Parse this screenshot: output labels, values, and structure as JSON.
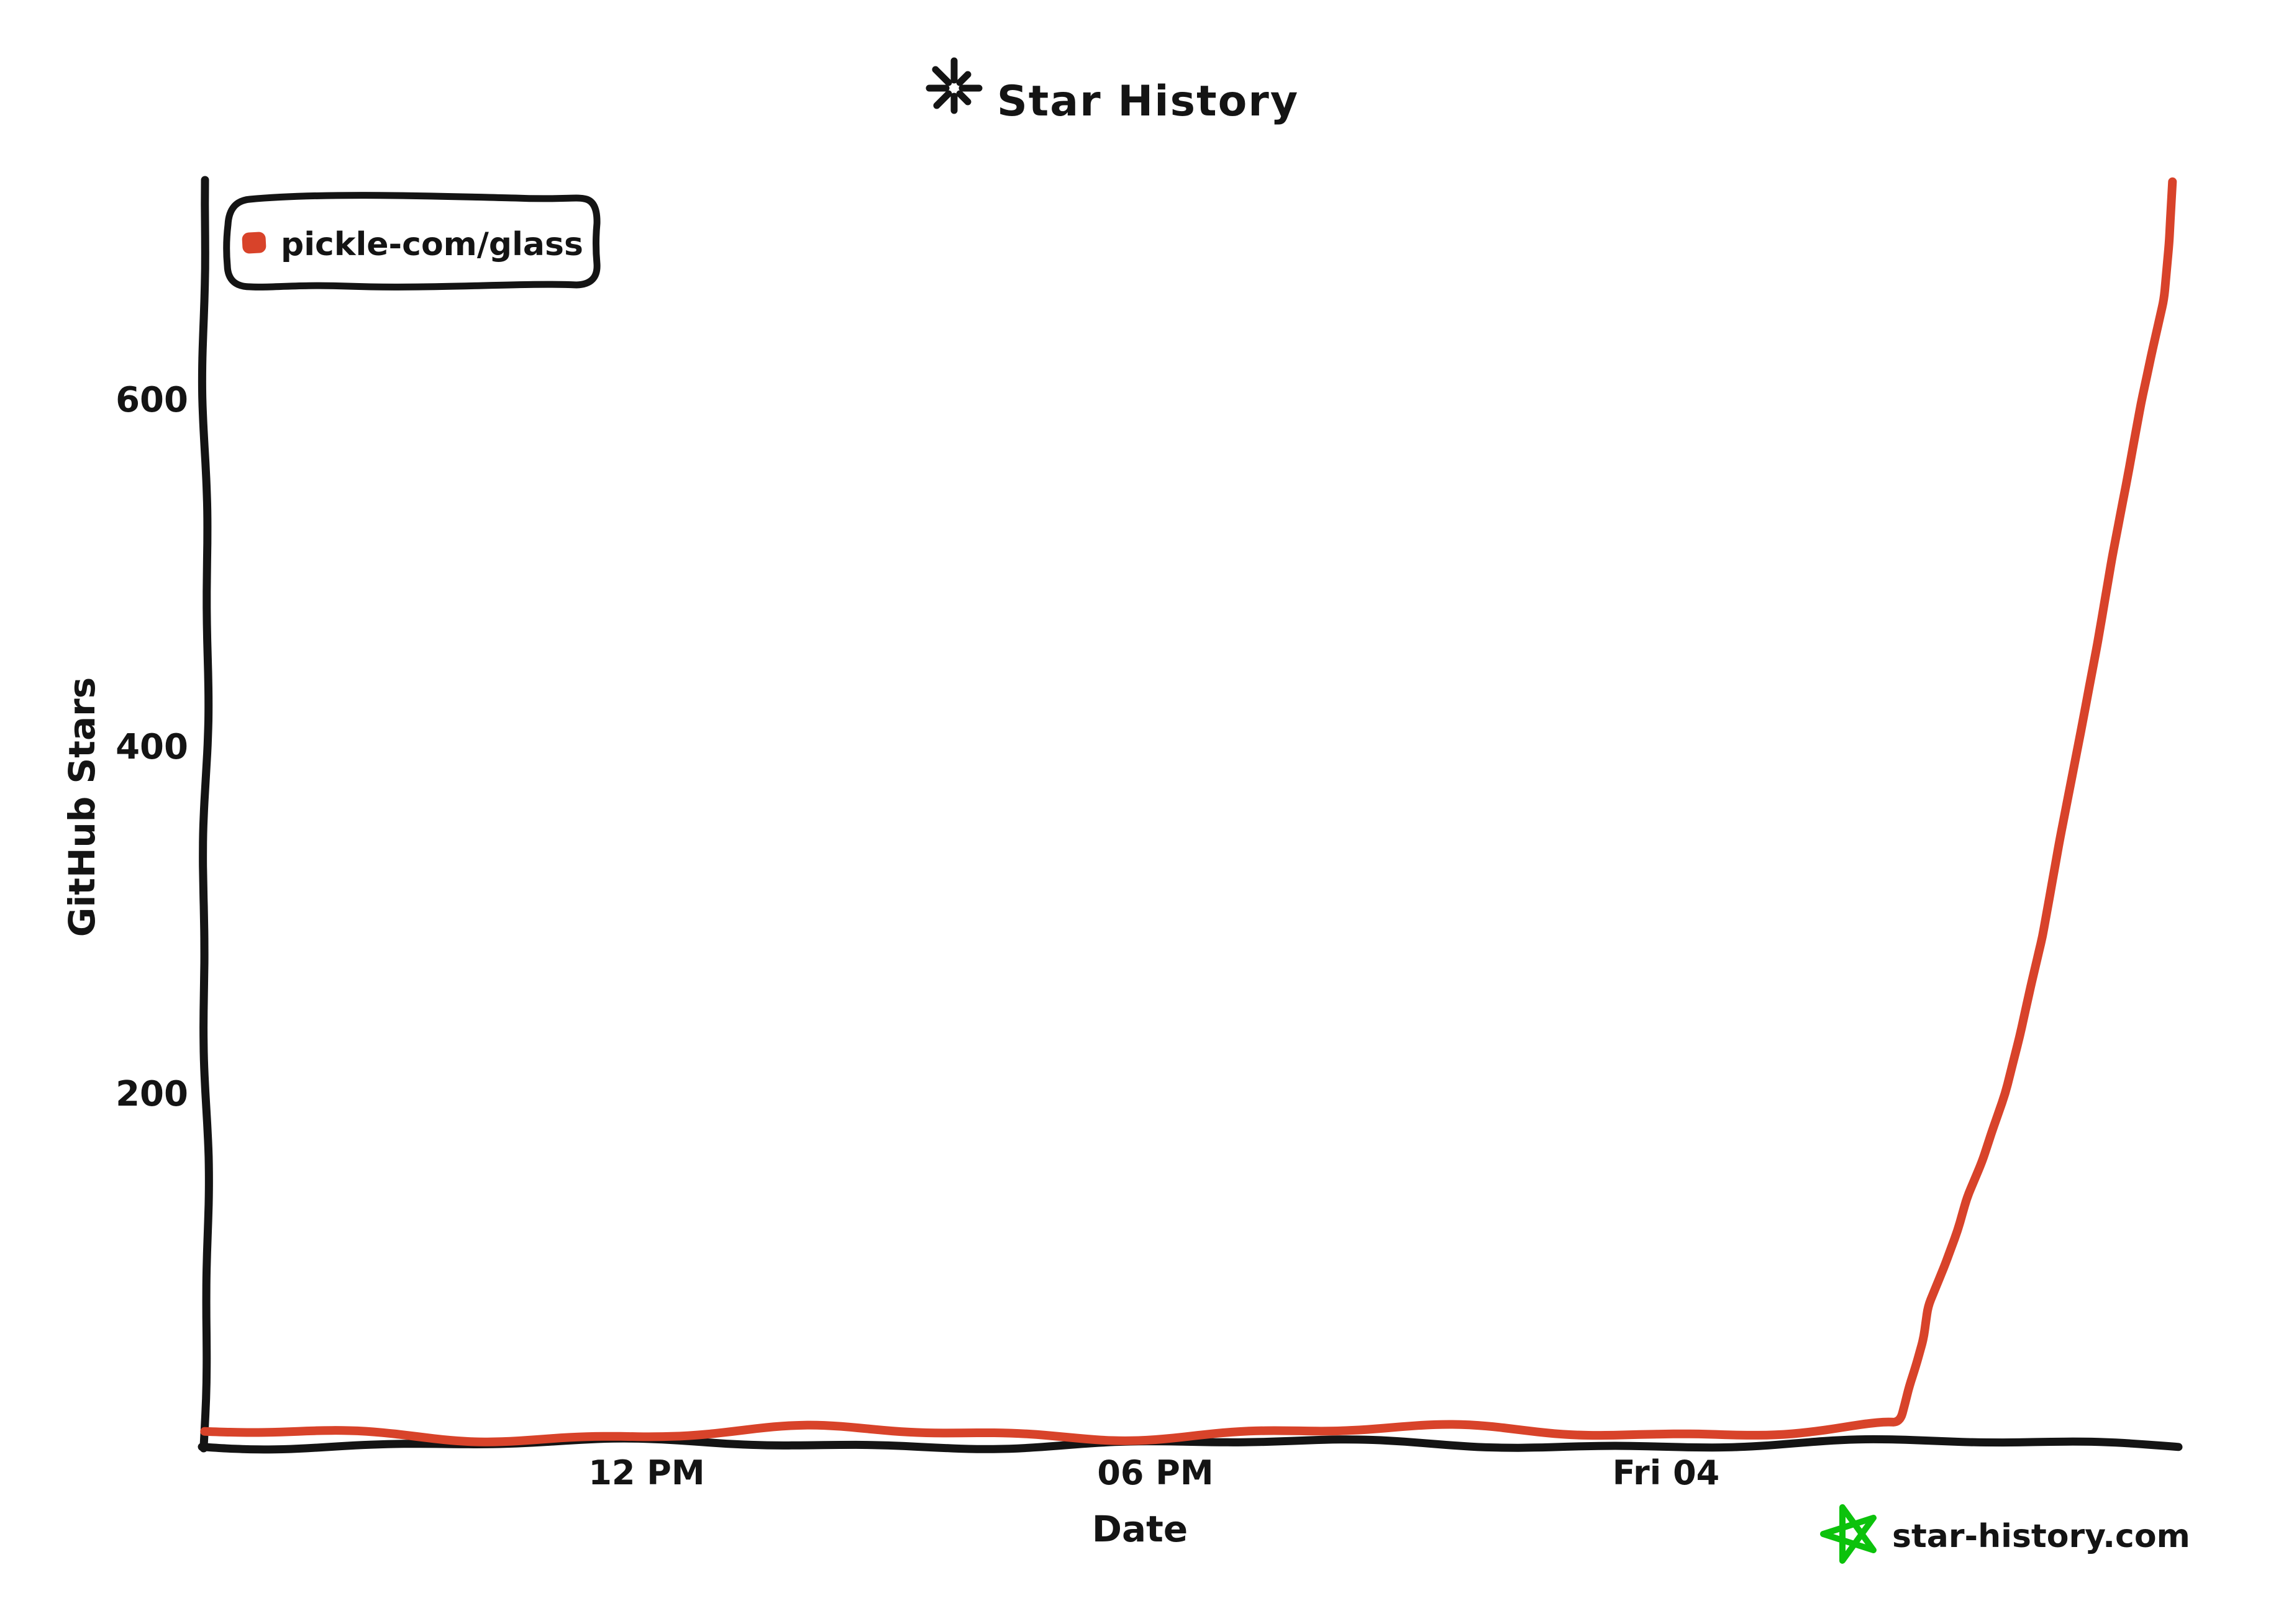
{
  "page": {
    "background": "#ffffff"
  },
  "title": {
    "icon": "sparkle-asterisk-icon",
    "text": "Star History"
  },
  "legend": {
    "position": "top-left-inside",
    "items": [
      {
        "label": "pickle-com/glass",
        "marker_color": "#d8432a"
      }
    ]
  },
  "footer": {
    "icon": "green-star-doodle-icon",
    "icon_color": "#0cc20c",
    "text": "star-history.com",
    "text_color": "#6e6e6e"
  },
  "chart_data": {
    "type": "line",
    "title": "Star History",
    "xlabel": "Date",
    "ylabel": "GitHub Stars",
    "grid": false,
    "legend_position": "top-left-inside",
    "style": "hand-drawn-xkcd",
    "x_axis": {
      "kind": "time",
      "tick_labels": [
        "12 PM",
        "06 PM",
        "Fri 04"
      ],
      "tick_hours_from_fri_midnight": [
        -12,
        -6,
        0
      ],
      "range_hours_from_fri_midnight": [
        -17.2,
        6.05
      ]
    },
    "y_axis": {
      "tick_labels": [
        "200",
        "400",
        "600"
      ],
      "tick_values": [
        200,
        400,
        600
      ],
      "range": [
        0,
        742
      ]
    },
    "series": [
      {
        "name": "pickle-com/glass",
        "color": "#d8432a",
        "points_hours_stars": [
          [
            -17.2,
            1
          ],
          [
            -16,
            2
          ],
          [
            -14,
            2
          ],
          [
            -12,
            2
          ],
          [
            -10,
            3
          ],
          [
            -8,
            3
          ],
          [
            -6,
            3
          ],
          [
            -4,
            3
          ],
          [
            -2,
            4
          ],
          [
            0,
            4
          ],
          [
            1,
            5
          ],
          [
            2,
            6
          ],
          [
            2.6,
            7
          ],
          [
            2.77,
            9
          ],
          [
            2.83,
            20
          ],
          [
            2.88,
            30
          ],
          [
            2.96,
            42
          ],
          [
            3.05,
            58
          ],
          [
            3.1,
            76
          ],
          [
            3.3,
            100
          ],
          [
            3.45,
            120
          ],
          [
            3.56,
            139
          ],
          [
            3.74,
            160
          ],
          [
            3.86,
            178
          ],
          [
            4.01,
            199
          ],
          [
            4.18,
            232
          ],
          [
            4.32,
            263
          ],
          [
            4.45,
            290
          ],
          [
            4.65,
            345
          ],
          [
            4.9,
            408
          ],
          [
            5.1,
            460
          ],
          [
            5.27,
            509
          ],
          [
            5.45,
            555
          ],
          [
            5.61,
            598
          ],
          [
            5.75,
            630
          ],
          [
            5.88,
            658
          ],
          [
            5.94,
            690
          ],
          [
            5.98,
            726
          ]
        ]
      }
    ]
  }
}
